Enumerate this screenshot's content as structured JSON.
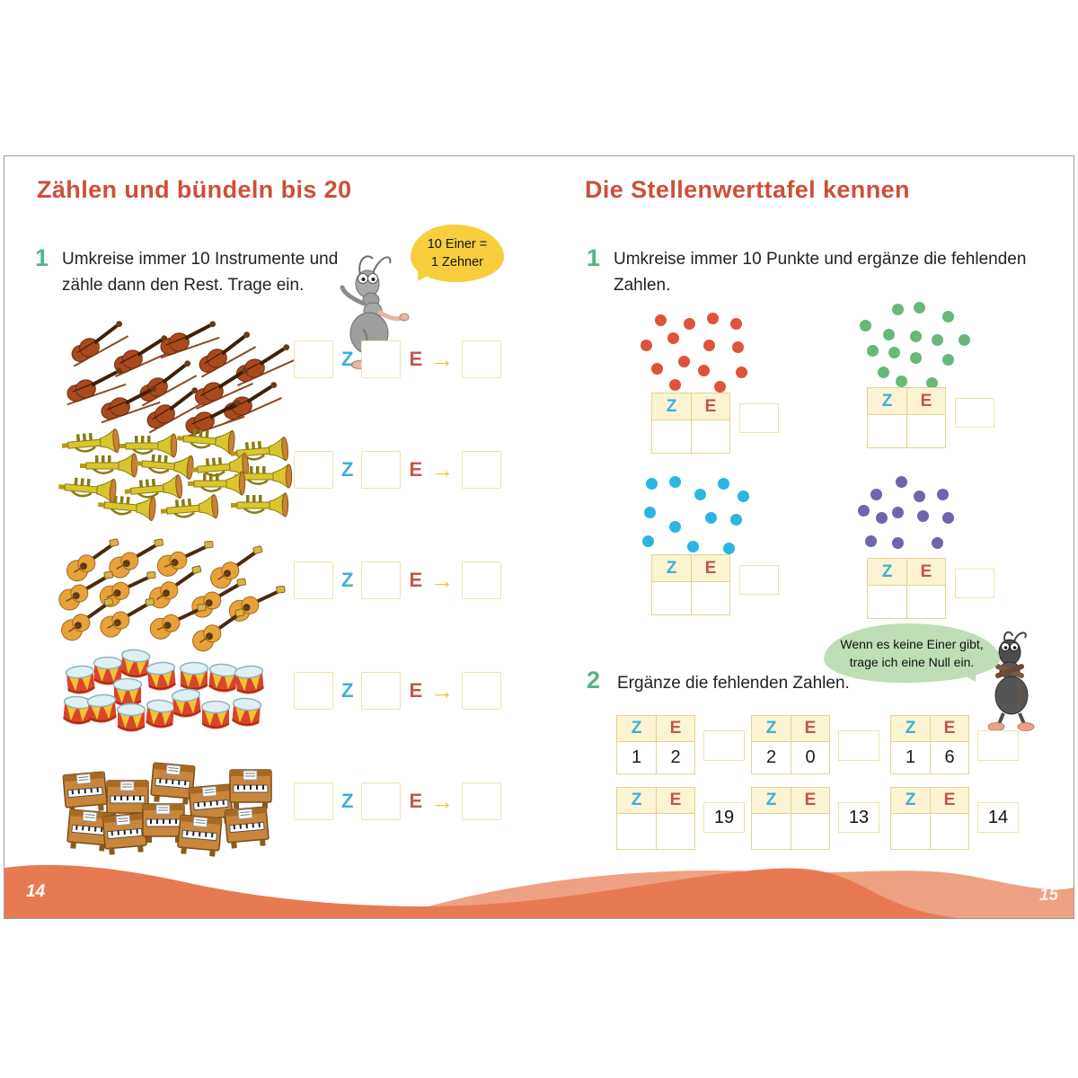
{
  "left_page": {
    "title": "Zählen und bündeln bis 20",
    "page_number": "14",
    "task1": {
      "number": "1",
      "line1": "Umkreise immer 10 Instrumente und",
      "line2": "zähle dann den Rest. Trage ein.",
      "bubble_line1": "10 Einer =",
      "bubble_line2": "1 Zehner"
    },
    "labels": {
      "tens": "Z",
      "ones": "E",
      "arrow": "→"
    },
    "rows": [
      {
        "instrument": "violin",
        "count": 12
      },
      {
        "instrument": "trumpet",
        "count": 14
      },
      {
        "instrument": "guitar",
        "count": 13
      },
      {
        "instrument": "drum",
        "count": 15
      },
      {
        "instrument": "piano",
        "count": 10
      }
    ]
  },
  "right_page": {
    "title": "Die Stellenwerttafel kennen",
    "page_number": "15",
    "task1": {
      "number": "1",
      "line1": "Umkreise immer 10 Punkte und ergänze die fehlenden",
      "line2": "Zahlen."
    },
    "labels": {
      "tens": "Z",
      "ones": "E"
    },
    "dot_groups": [
      {
        "color_name": "red",
        "color": "#e0523a",
        "count": 14
      },
      {
        "color_name": "green",
        "color": "#68b877",
        "count": 15
      },
      {
        "color_name": "blue",
        "color": "#2ab5e4",
        "count": 12
      },
      {
        "color_name": "purple",
        "color": "#6f64ad",
        "count": 12
      }
    ],
    "bubble": {
      "line1": "Wenn es keine Einer gibt,",
      "line2": "trage ich eine Null ein."
    },
    "task2": {
      "number": "2",
      "text": "Ergänze die fehlenden Zahlen.",
      "tables_row1": [
        {
          "z": "1",
          "e": "2",
          "result": ""
        },
        {
          "z": "2",
          "e": "0",
          "result": ""
        },
        {
          "z": "1",
          "e": "6",
          "result": ""
        }
      ],
      "tables_row2": [
        {
          "z": "",
          "e": "",
          "result": "19"
        },
        {
          "z": "",
          "e": "",
          "result": "13"
        },
        {
          "z": "",
          "e": "",
          "result": "14"
        }
      ]
    }
  },
  "colors": {
    "title_red": "#ce4f38",
    "task_green": "#55b487",
    "z_blue": "#3fafd6",
    "e_red": "#c2554b",
    "arrow_yellow": "#e9c43f",
    "box_border": "#efe3a8",
    "table_fill": "#fbf3d2",
    "bubble_yellow": "#f8ce3e",
    "bubble_green": "#bfddb7",
    "wave_dark": "#e87a53",
    "wave_light": "#efa183"
  }
}
